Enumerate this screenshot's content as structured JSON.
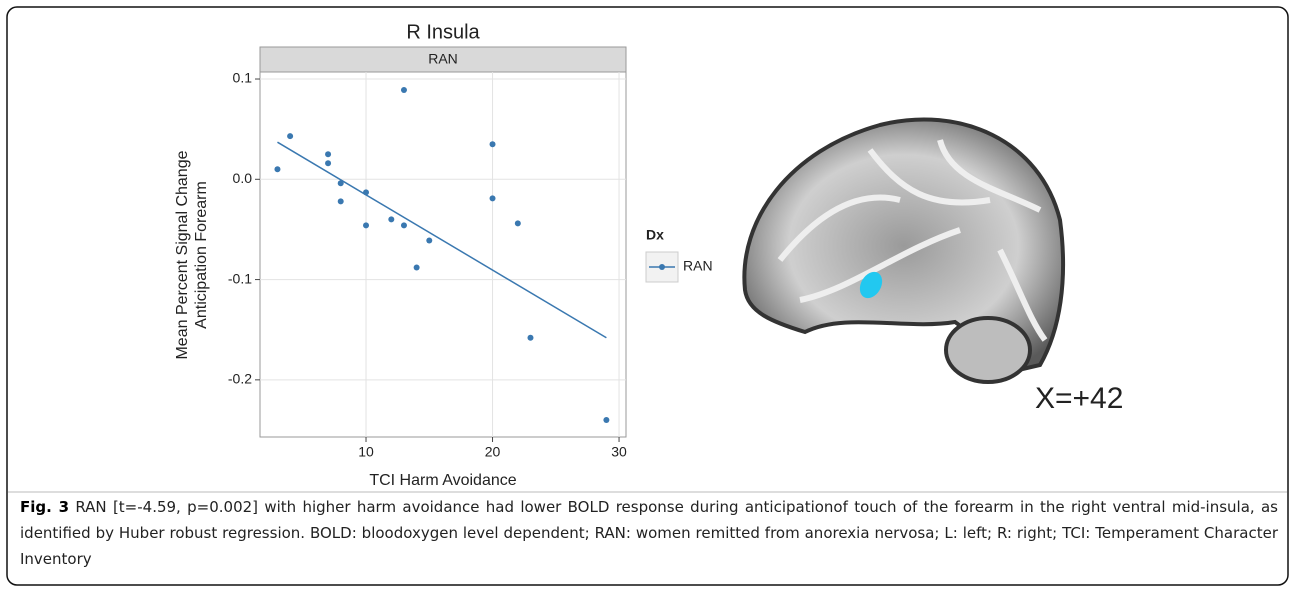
{
  "chart_data": {
    "type": "scatter",
    "title": "R Insula",
    "facet_label": "RAN",
    "xlabel": "TCI Harm Avoidance",
    "ylabel": [
      "Mean Percent Signal Change",
      "Anticipation Forearm"
    ],
    "xlim": [
      1.62,
      30.55
    ],
    "ylim": [
      -0.257,
      0.107
    ],
    "xticks": [
      10,
      20,
      30
    ],
    "yticks": [
      0.1,
      {
        "value": 0,
        "label": "0.0"
      },
      -0.1,
      -0.2
    ],
    "grid": true,
    "legend_title": "Dx",
    "series": [
      {
        "name": "RAN",
        "color": "#3a78b0",
        "x": [
          3,
          4,
          7,
          7,
          8,
          8,
          10,
          10,
          12,
          13,
          13,
          14,
          15,
          20,
          20,
          22,
          23,
          29
        ],
        "values": [
          0.01,
          0.043,
          0.025,
          0.016,
          -0.004,
          -0.022,
          -0.013,
          -0.046,
          -0.04,
          0.089,
          -0.046,
          -0.088,
          -0.061,
          0.035,
          -0.019,
          -0.044,
          -0.158,
          -0.24
        ]
      }
    ],
    "fit": {
      "x": [
        3,
        29
      ],
      "values": [
        0.037,
        -0.158
      ]
    }
  },
  "image_label": "X=+42",
  "caption": {
    "label": "Fig. 3",
    "text": "RAN [t=-4.59, p=0.002] with higher harm avoidance had lower BOLD response during anticipationof touch of the forearm in the right ventral mid-insula, as identified by Huber robust regression. BOLD: bloodoxygen level dependent; RAN: women remitted from anorexia nervosa; L: left; R: right; TCI: Temperament Character Inventory"
  }
}
